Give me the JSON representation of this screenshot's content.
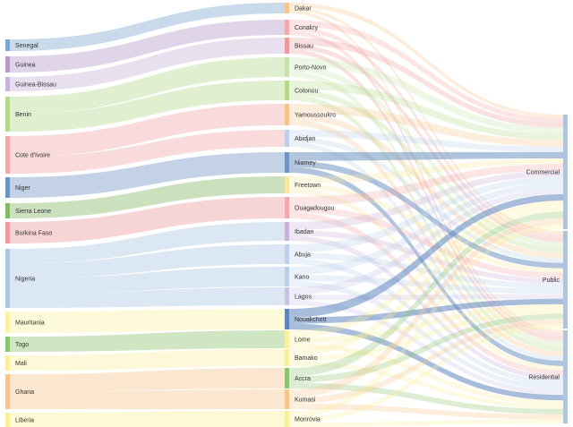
{
  "diagram": {
    "type": "sankey",
    "countries": [
      {
        "name": "Senegal",
        "color": "#7FA6CC"
      },
      {
        "name": "Guinea",
        "color": "#B69AC9"
      },
      {
        "name": "Guinea-Bissau",
        "color": "#C9B3DA"
      },
      {
        "name": "Benin",
        "color": "#B5D98C"
      },
      {
        "name": "Cote d'Ivoire",
        "color": "#F2A9A9"
      },
      {
        "name": "Niger",
        "color": "#6F93C2"
      },
      {
        "name": "Sierra Leone",
        "color": "#83B865"
      },
      {
        "name": "Burkina Faso",
        "color": "#EF9A9A"
      },
      {
        "name": "Nigeria",
        "color": "#A9C6E3"
      },
      {
        "name": "Mauritania",
        "color": "#FBF2A6"
      },
      {
        "name": "Togo",
        "color": "#8FC46F"
      },
      {
        "name": "Mali",
        "color": "#FAEFA0"
      },
      {
        "name": "Ghana",
        "color": "#F6C58C"
      },
      {
        "name": "Liberia",
        "color": "#FAF09C"
      }
    ],
    "cities": [
      {
        "name": "Dakar",
        "color": "#F6C58C"
      },
      {
        "name": "Conakry",
        "color": "#F2A9A9"
      },
      {
        "name": "Bissau",
        "color": "#EF9A9A"
      },
      {
        "name": "Porto-Novo",
        "color": "#C8E3A9"
      },
      {
        "name": "Cotonou",
        "color": "#B5D98C"
      },
      {
        "name": "Yamoussoukro",
        "color": "#F6C58C"
      },
      {
        "name": "Abidjan",
        "color": "#B9D2EA"
      },
      {
        "name": "Niamey",
        "color": "#6F93C2"
      },
      {
        "name": "Freetown",
        "color": "#F9E7A0"
      },
      {
        "name": "Ouagadougou",
        "color": "#F2A9A9"
      },
      {
        "name": "Ibadan",
        "color": "#C9B3DA"
      },
      {
        "name": "Abuja",
        "color": "#B9D2EA"
      },
      {
        "name": "Kano",
        "color": "#B9D2EA"
      },
      {
        "name": "Lagos",
        "color": "#C9C3E3"
      },
      {
        "name": "Nouakchott",
        "color": "#5E86BD"
      },
      {
        "name": "Lome",
        "color": "#FAF09C"
      },
      {
        "name": "Bamako",
        "color": "#FAEFA0"
      },
      {
        "name": "Accra",
        "color": "#8FC46F"
      },
      {
        "name": "Kumasi",
        "color": "#F6C58C"
      },
      {
        "name": "Monrovia",
        "color": "#FAF09C"
      }
    ],
    "sectors": [
      {
        "name": "Commercial",
        "color": "#A9C6E3"
      },
      {
        "name": "Public",
        "color": "#A9C6E3"
      },
      {
        "name": "Residential",
        "color": "#A9C6E3"
      }
    ],
    "country_city_links": [
      [
        "Senegal",
        "Dakar"
      ],
      [
        "Guinea",
        "Conakry"
      ],
      [
        "Guinea-Bissau",
        "Bissau"
      ],
      [
        "Benin",
        "Porto-Novo"
      ],
      [
        "Benin",
        "Cotonou"
      ],
      [
        "Cote d'Ivoire",
        "Yamoussoukro"
      ],
      [
        "Cote d'Ivoire",
        "Abidjan"
      ],
      [
        "Niger",
        "Niamey"
      ],
      [
        "Sierra Leone",
        "Freetown"
      ],
      [
        "Burkina Faso",
        "Ouagadougou"
      ],
      [
        "Nigeria",
        "Ibadan"
      ],
      [
        "Nigeria",
        "Abuja"
      ],
      [
        "Nigeria",
        "Kano"
      ],
      [
        "Nigeria",
        "Lagos"
      ],
      [
        "Mauritania",
        "Nouakchott"
      ],
      [
        "Togo",
        "Lome"
      ],
      [
        "Mali",
        "Bamako"
      ],
      [
        "Ghana",
        "Accra"
      ],
      [
        "Ghana",
        "Kumasi"
      ],
      [
        "Liberia",
        "Monrovia"
      ]
    ]
  }
}
